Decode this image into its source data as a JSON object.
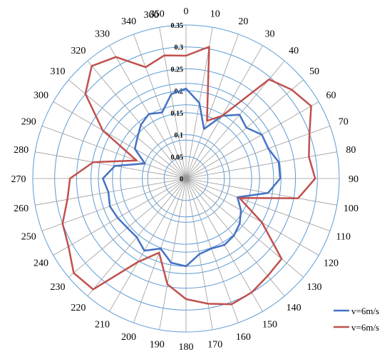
{
  "chart_data": {
    "type": "radar",
    "r_ticks": [
      "0",
      "0.05",
      "0.1",
      "0.15",
      "0.2",
      "0.25",
      "0.3",
      "0.35"
    ],
    "rlim": [
      0,
      0.35
    ],
    "angle_labels": [
      "0",
      "10",
      "20",
      "30",
      "40",
      "50",
      "60",
      "70",
      "80",
      "90",
      "100",
      "110",
      "120",
      "130",
      "140",
      "150",
      "160",
      "170",
      "180",
      "190",
      "200",
      "210",
      "220",
      "230",
      "240",
      "250",
      "260",
      "270",
      "280",
      "290",
      "300",
      "310",
      "320",
      "330",
      "340",
      "350",
      "360"
    ],
    "angles_deg": [
      0,
      10,
      20,
      30,
      40,
      50,
      60,
      70,
      80,
      90,
      100,
      110,
      120,
      130,
      140,
      150,
      160,
      170,
      180,
      190,
      200,
      210,
      220,
      230,
      240,
      250,
      260,
      270,
      280,
      290,
      300,
      310,
      320,
      330,
      340,
      350
    ],
    "grid": true,
    "legend_position": "bottom-right",
    "series": [
      {
        "name": "v=6m/s",
        "color": "#4472C4",
        "values": [
          0.205,
          0.175,
          0.12,
          0.165,
          0.19,
          0.18,
          0.2,
          0.2,
          0.215,
          0.215,
          0.19,
          0.125,
          0.145,
          0.16,
          0.17,
          0.175,
          0.17,
          0.175,
          0.2,
          0.195,
          0.17,
          0.19,
          0.175,
          0.175,
          0.18,
          0.185,
          0.18,
          0.19,
          0.165,
          0.1,
          0.135,
          0.145,
          0.16,
          0.17,
          0.16,
          0.195
        ]
      },
      {
        "name": "v=6m/s",
        "color": "#C0504D",
        "values": [
          0.28,
          0.305,
          0.14,
          0.165,
          0.295,
          0.315,
          0.33,
          0.3,
          0.285,
          0.295,
          0.26,
          0.13,
          0.2,
          0.285,
          0.29,
          0.3,
          0.305,
          0.29,
          0.275,
          0.245,
          0.18,
          0.22,
          0.33,
          0.335,
          0.31,
          0.3,
          0.275,
          0.265,
          0.215,
          0.12,
          0.22,
          0.3,
          0.335,
          0.32,
          0.27,
          0.285
        ]
      }
    ]
  }
}
